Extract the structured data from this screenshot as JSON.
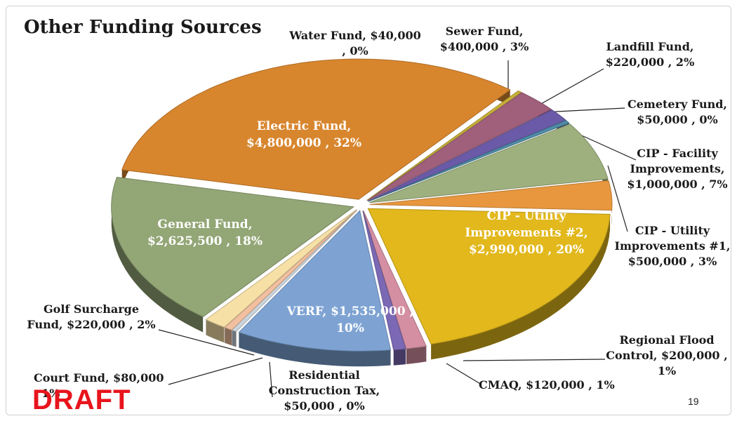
{
  "title": "Other Funding Sources",
  "draft_label": "DRAFT",
  "page_number": "19",
  "chart_data": {
    "type": "pie",
    "title": "Other Funding Sources",
    "slices": [
      {
        "name": "Water Fund",
        "value": 40000,
        "percent": 0,
        "label": "Water Fund,  $40,000\n, 0%",
        "color": "#c9b03a"
      },
      {
        "name": "Sewer Fund",
        "value": 400000,
        "percent": 3,
        "label": "Sewer Fund,\n$400,000 , 3%",
        "color": "#a0607c"
      },
      {
        "name": "Landfill Fund",
        "value": 220000,
        "percent": 2,
        "label": "Landfill Fund,\n$220,000 , 2%",
        "color": "#6a5aa8"
      },
      {
        "name": "Cemetery Fund",
        "value": 50000,
        "percent": 0,
        "label": "Cemetery Fund,\n$50,000 , 0%",
        "color": "#4f8ca8"
      },
      {
        "name": "CIP - Facility Improvements",
        "value": 1000000,
        "percent": 7,
        "label": "CIP - Facility\nImprovements,\n$1,000,000 , 7%",
        "color": "#9db07e"
      },
      {
        "name": "CIP - Utility Improvements #1",
        "value": 500000,
        "percent": 3,
        "label": "CIP - Utility\nImprovements #1,\n$500,000 , 3%",
        "color": "#e8973e"
      },
      {
        "name": "CIP - Utility Improvements #2",
        "value": 2990000,
        "percent": 20,
        "label": "CIP - Utility\nImprovements #2,\n$2,990,000 , 20%",
        "color": "#e2b81c"
      },
      {
        "name": "Regional Flood Control",
        "value": 200000,
        "percent": 1,
        "label": "Regional Flood\nControl,  $200,000 ,\n1%",
        "color": "#d48fa3"
      },
      {
        "name": "CMAQ",
        "value": 120000,
        "percent": 1,
        "label": "CMAQ,  $120,000 , 1%",
        "color": "#7c69b5"
      },
      {
        "name": "VERF",
        "value": 1535000,
        "percent": 10,
        "label": "VERF,  $1,535,000 ,\n10%",
        "color": "#7ea3d3"
      },
      {
        "name": "Residential Construction Tax",
        "value": 50000,
        "percent": 0,
        "label": "Residential\nConstruction Tax,\n$50,000 , 0%",
        "color": "#c9d4dd"
      },
      {
        "name": "Court Fund",
        "value": 80000,
        "percent": 1,
        "label": "Court Fund,  $80,000\n, 1%",
        "color": "#f2c0a0"
      },
      {
        "name": "Golf Surcharge Fund",
        "value": 220000,
        "percent": 2,
        "label": "Golf Surcharge\nFund,  $220,000 , 2%",
        "color": "#f6e0a6"
      },
      {
        "name": "General Fund",
        "value": 2625500,
        "percent": 18,
        "label": "General Fund,\n$2,625,500 , 18%",
        "color": "#93a676"
      },
      {
        "name": "Electric Fund",
        "value": 4800000,
        "percent": 32,
        "label": "Electric Fund,\n$4,800,000 , 32%",
        "color": "#d8862e"
      }
    ]
  }
}
